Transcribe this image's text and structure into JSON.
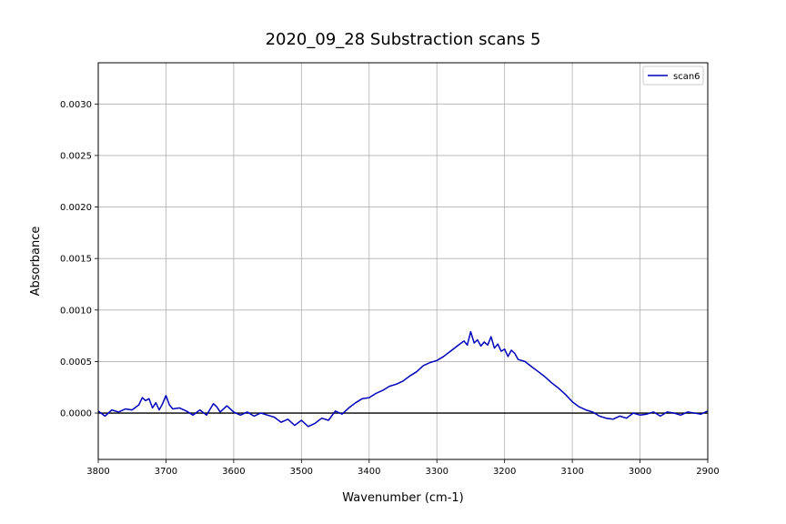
{
  "chart_data": {
    "type": "line",
    "title": "2020_09_28 Substraction scans 5",
    "xlabel": "Wavenumber (cm-1)",
    "ylabel": "Absorbance",
    "xlim": [
      3800,
      2900
    ],
    "ylim": [
      -0.00045,
      0.0034
    ],
    "x_inverted": true,
    "grid": true,
    "legend_position": "top-right",
    "xticks": [
      3800,
      3700,
      3600,
      3500,
      3400,
      3300,
      3200,
      3100,
      3000,
      2900
    ],
    "xtick_labels": [
      "3800",
      "3700",
      "3600",
      "3500",
      "3400",
      "3300",
      "3200",
      "3100",
      "3000",
      "2900"
    ],
    "yticks": [
      0,
      0.0005,
      0.001,
      0.0015,
      0.002,
      0.0025,
      0.003
    ],
    "ytick_labels": [
      "0.0000",
      "0.0005",
      "0.0010",
      "0.0015",
      "0.0020",
      "0.0025",
      "0.0030"
    ],
    "zero_line_color": "#000000",
    "series": [
      {
        "name": "scan6",
        "color": "#0000bb",
        "x": [
          3800,
          3790,
          3780,
          3770,
          3760,
          3750,
          3740,
          3735,
          3730,
          3725,
          3720,
          3715,
          3710,
          3705,
          3700,
          3695,
          3690,
          3680,
          3670,
          3660,
          3650,
          3640,
          3630,
          3625,
          3620,
          3610,
          3600,
          3590,
          3580,
          3570,
          3560,
          3550,
          3540,
          3530,
          3520,
          3510,
          3500,
          3490,
          3480,
          3470,
          3460,
          3450,
          3440,
          3430,
          3420,
          3410,
          3400,
          3390,
          3380,
          3370,
          3360,
          3350,
          3340,
          3330,
          3320,
          3310,
          3300,
          3290,
          3280,
          3270,
          3260,
          3255,
          3250,
          3245,
          3240,
          3235,
          3230,
          3225,
          3220,
          3215,
          3210,
          3205,
          3200,
          3195,
          3190,
          3185,
          3180,
          3170,
          3160,
          3150,
          3140,
          3130,
          3120,
          3110,
          3100,
          3090,
          3080,
          3070,
          3060,
          3050,
          3040,
          3030,
          3020,
          3010,
          3000,
          2990,
          2980,
          2970,
          2960,
          2950,
          2940,
          2930,
          2920,
          2910,
          2900
        ],
        "values": [
          2e-05,
          -3e-05,
          3e-05,
          1e-05,
          4e-05,
          3e-05,
          8e-05,
          0.00015,
          0.00012,
          0.00014,
          5e-05,
          0.0001,
          3e-05,
          9e-05,
          0.00017,
          8e-05,
          4e-05,
          5e-05,
          2e-05,
          -2e-05,
          3e-05,
          -2e-05,
          9e-05,
          6e-05,
          1e-05,
          7e-05,
          1e-05,
          -2e-05,
          1e-05,
          -3e-05,
          0.0,
          -2e-05,
          -4e-05,
          -9e-05,
          -6e-05,
          -0.00012,
          -7e-05,
          -0.00013,
          -0.0001,
          -5e-05,
          -7e-05,
          2e-05,
          -1e-05,
          5e-05,
          0.0001,
          0.00014,
          0.00015,
          0.00019,
          0.00022,
          0.00026,
          0.00028,
          0.00031,
          0.00036,
          0.0004,
          0.00046,
          0.00049,
          0.00051,
          0.00055,
          0.0006,
          0.00065,
          0.0007,
          0.00066,
          0.00079,
          0.00068,
          0.00071,
          0.00065,
          0.00069,
          0.00066,
          0.00074,
          0.00063,
          0.00067,
          0.0006,
          0.00062,
          0.00055,
          0.00061,
          0.00058,
          0.00052,
          0.0005,
          0.00045,
          0.0004,
          0.00035,
          0.00029,
          0.00024,
          0.00018,
          0.00011,
          6e-05,
          3e-05,
          1e-05,
          -3e-05,
          -5e-05,
          -6e-05,
          -3e-05,
          -5e-05,
          0.0,
          -2e-05,
          -1e-05,
          1e-05,
          -3e-05,
          1e-05,
          0.0,
          -2e-05,
          1e-05,
          0.0,
          -1e-05,
          2e-05
        ]
      }
    ]
  }
}
